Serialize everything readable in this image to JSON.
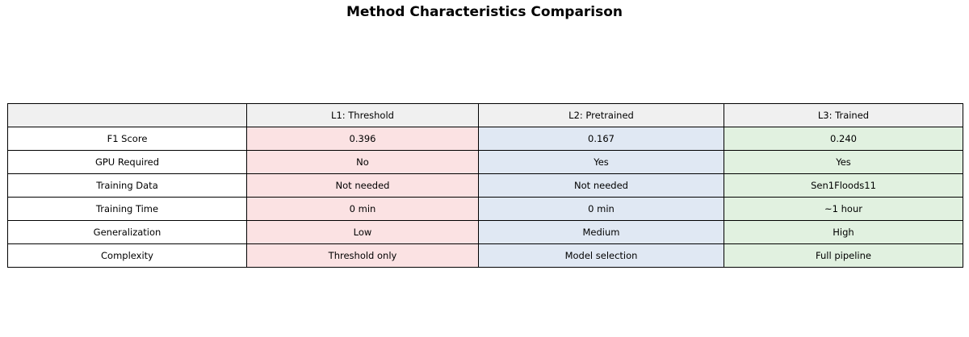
{
  "title": "Method Characteristics Comparison",
  "chart_data": {
    "type": "table",
    "title": "Method Characteristics Comparison",
    "columns": [
      "",
      "L1: Threshold",
      "L2: Pretrained",
      "L3: Trained"
    ],
    "row_labels": [
      "F1 Score",
      "GPU Required",
      "Training Data",
      "Training Time",
      "Generalization",
      "Complexity"
    ],
    "rows": [
      {
        "label": "F1 Score",
        "values": [
          "0.396",
          "0.167",
          "0.240"
        ]
      },
      {
        "label": "GPU Required",
        "values": [
          "No",
          "Yes",
          "Yes"
        ]
      },
      {
        "label": "Training Data",
        "values": [
          "Not needed",
          "Not needed",
          "Sen1Floods11"
        ]
      },
      {
        "label": "Training Time",
        "values": [
          "0 min",
          "0 min",
          "~1 hour"
        ]
      },
      {
        "label": "Generalization",
        "values": [
          "Low",
          "Medium",
          "High"
        ]
      },
      {
        "label": "Complexity",
        "values": [
          "Threshold only",
          "Model selection",
          "Full pipeline"
        ]
      }
    ],
    "layout": {
      "header_row_background": "#f0f0f0",
      "row_label_background": "#ffffff",
      "column_backgrounds": {
        "L1: Threshold": "#fbe2e3",
        "L2: Pretrained": "#e0e8f3",
        "L3: Trained": "#e1f1e0"
      },
      "border_color": "#000000",
      "grid": "all-cell-borders"
    }
  }
}
